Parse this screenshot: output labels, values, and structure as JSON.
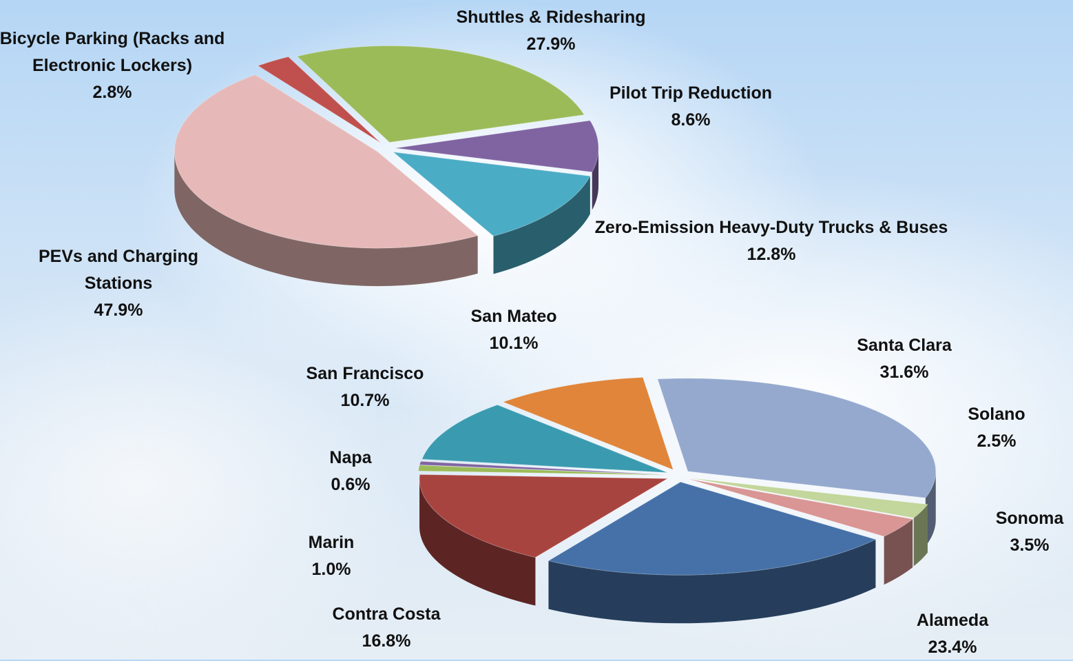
{
  "chart_data": [
    {
      "type": "pie",
      "categories": [
        "Shuttles & Ridesharing",
        "Pilot Trip Reduction",
        "Zero-Emission Heavy-Duty Trucks & Buses",
        "PEVs and Charging Stations",
        "Bicycle Parking (Racks and Electronic Lockers)"
      ],
      "values": [
        27.9,
        8.6,
        12.8,
        47.9,
        2.8
      ],
      "value_labels": [
        "27.9%",
        "8.6%",
        "12.8%",
        "47.9%",
        "2.8%"
      ],
      "colors": [
        "#9bbb59",
        "#8064a2",
        "#4bacc6",
        "#e6b9b8",
        "#c0504d"
      ]
    },
    {
      "type": "pie",
      "categories": [
        "Santa Clara",
        "Solano",
        "Sonoma",
        "Alameda",
        "Contra Costa",
        "Marin",
        "Napa",
        "San Francisco",
        "San Mateo"
      ],
      "values": [
        31.6,
        2.5,
        3.5,
        23.4,
        16.8,
        1.0,
        0.6,
        10.7,
        10.1
      ],
      "value_labels": [
        "31.6%",
        "2.5%",
        "3.5%",
        "23.4%",
        "16.8%",
        "1.0%",
        "0.6%",
        "10.7%",
        "10.1%"
      ],
      "colors": [
        "#95a9cf",
        "#c3d69b",
        "#d99694",
        "#4571a8",
        "#a8443f",
        "#9bbb59",
        "#8064a2",
        "#3a9bb0",
        "#e0853a"
      ]
    }
  ]
}
